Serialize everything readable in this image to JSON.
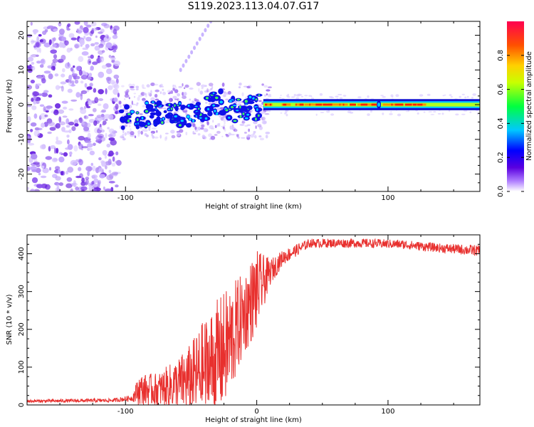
{
  "title": "S119.2023.113.04.07.G17",
  "chart_data": [
    {
      "type": "heatmap",
      "xlabel": "Height of straight line (km)",
      "ylabel": "Frequency (Hz)",
      "xlim": [
        -175,
        170
      ],
      "ylim": [
        -25,
        24
      ],
      "xticks": [
        -100,
        0,
        100
      ],
      "yticks": [
        -20,
        -10,
        0,
        10,
        20
      ],
      "noise_region_x": [
        -175,
        -105
      ],
      "ridge": [
        {
          "x": -105,
          "y": -4
        },
        {
          "x": -95,
          "y": -4
        },
        {
          "x": -85,
          "y": -3
        },
        {
          "x": -75,
          "y": -2
        },
        {
          "x": -65,
          "y": -3
        },
        {
          "x": -55,
          "y": -3
        },
        {
          "x": -45,
          "y": -2
        },
        {
          "x": -30,
          "y": 1
        },
        {
          "x": -20,
          "y": -1
        },
        {
          "x": -10,
          "y": -2
        },
        {
          "x": -5,
          "y": 0
        },
        {
          "x": 0,
          "y": -1
        },
        {
          "x": 5,
          "y": 0
        },
        {
          "x": 170,
          "y": 0
        }
      ],
      "tail": {
        "start": {
          "x": -58,
          "y": 10
        },
        "end": {
          "x": -35,
          "y": 24
        }
      },
      "colorbar": {
        "label": "Normalized spectral amplitude",
        "range": [
          0.0,
          1.0
        ],
        "ticks": [
          0.0,
          0.2,
          0.4,
          0.6,
          0.8
        ]
      }
    },
    {
      "type": "line",
      "xlabel": "Height of straight line (km)",
      "ylabel": "SNR (10 * v/v)",
      "xlim": [
        -175,
        170
      ],
      "ylim": [
        0,
        450
      ],
      "xticks": [
        -100,
        0,
        100
      ],
      "yticks": [
        0,
        100,
        200,
        300,
        400
      ],
      "color": "#e8302e",
      "envelope": [
        {
          "x": -175,
          "base": 10,
          "amp": 4
        },
        {
          "x": -110,
          "base": 12,
          "amp": 5
        },
        {
          "x": -95,
          "base": 18,
          "amp": 8
        },
        {
          "x": -90,
          "base": 40,
          "amp": 40
        },
        {
          "x": -75,
          "base": 40,
          "amp": 45
        },
        {
          "x": -60,
          "base": 55,
          "amp": 70
        },
        {
          "x": -50,
          "base": 70,
          "amp": 95
        },
        {
          "x": -40,
          "base": 90,
          "amp": 140
        },
        {
          "x": -30,
          "base": 120,
          "amp": 160
        },
        {
          "x": -20,
          "base": 170,
          "amp": 150
        },
        {
          "x": -10,
          "base": 240,
          "amp": 110
        },
        {
          "x": 0,
          "base": 300,
          "amp": 110
        },
        {
          "x": 10,
          "base": 350,
          "amp": 35
        },
        {
          "x": 20,
          "base": 390,
          "amp": 20
        },
        {
          "x": 40,
          "base": 428,
          "amp": 12
        },
        {
          "x": 80,
          "base": 428,
          "amp": 12
        },
        {
          "x": 110,
          "base": 425,
          "amp": 12
        },
        {
          "x": 140,
          "base": 415,
          "amp": 12
        },
        {
          "x": 170,
          "base": 408,
          "amp": 15
        }
      ]
    }
  ]
}
